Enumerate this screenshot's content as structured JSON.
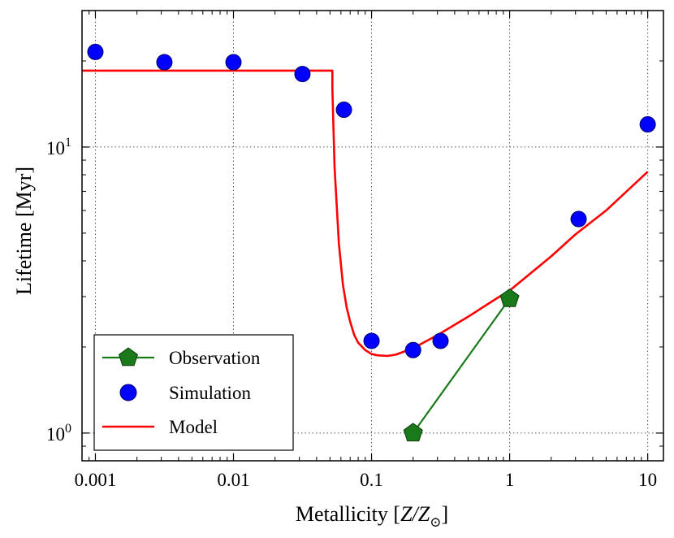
{
  "chart_data": {
    "type": "line",
    "xscale": "log",
    "yscale": "log",
    "xlabel": "Metallicity [",
    "xlabel_var": "Z/Z",
    "xlabel_sub": "⊙",
    "xlabel_close": "]",
    "ylabel": "Lifetime [Myr]",
    "xlim": [
      0.0008,
      13
    ],
    "ylim": [
      0.8,
      30
    ],
    "grid": true,
    "legend_position": "lower-left",
    "x_ticks": [
      {
        "value": 0.001,
        "label": "0.001"
      },
      {
        "value": 0.01,
        "label": "0.01"
      },
      {
        "value": 0.1,
        "label": "0.1"
      },
      {
        "value": 1,
        "label": "1"
      },
      {
        "value": 10,
        "label": "10"
      }
    ],
    "y_ticks": [
      {
        "value": 1,
        "base": "10",
        "exp": "0"
      },
      {
        "value": 10,
        "base": "10",
        "exp": "1"
      }
    ],
    "series": [
      {
        "name": "Observation",
        "kind": "line-marker",
        "marker": "pentagon",
        "color": "#1a7a1a",
        "x": [
          0.2,
          1.0
        ],
        "y": [
          1.0,
          2.95
        ]
      },
      {
        "name": "Simulation",
        "kind": "scatter",
        "marker": "circle",
        "color": "#0000ff",
        "x": [
          0.001,
          0.00316,
          0.01,
          0.0316,
          0.0631,
          0.1,
          0.2,
          0.316,
          1.0,
          3.16,
          10.0
        ],
        "y": [
          21.5,
          19.8,
          19.8,
          18.0,
          13.5,
          2.1,
          1.95,
          2.1,
          2.95,
          5.6,
          12.0
        ]
      },
      {
        "name": "Model",
        "kind": "line",
        "color": "#ff0000",
        "x": [
          0.0008,
          0.052,
          0.052,
          0.054,
          0.058,
          0.062,
          0.066,
          0.07,
          0.075,
          0.08,
          0.09,
          0.1,
          0.11,
          0.13,
          0.15,
          0.2,
          0.3,
          0.5,
          0.8,
          1.0,
          2.0,
          3.0,
          5.0,
          10.0
        ],
        "y": [
          18.5,
          18.5,
          16.0,
          8.5,
          4.6,
          3.3,
          2.75,
          2.45,
          2.2,
          2.07,
          1.95,
          1.89,
          1.87,
          1.86,
          1.88,
          1.98,
          2.2,
          2.55,
          2.95,
          3.15,
          4.15,
          4.95,
          6.0,
          8.2
        ]
      }
    ]
  },
  "colors": {
    "frame": "#000000",
    "grid": "#555555",
    "background": "#ffffff"
  }
}
